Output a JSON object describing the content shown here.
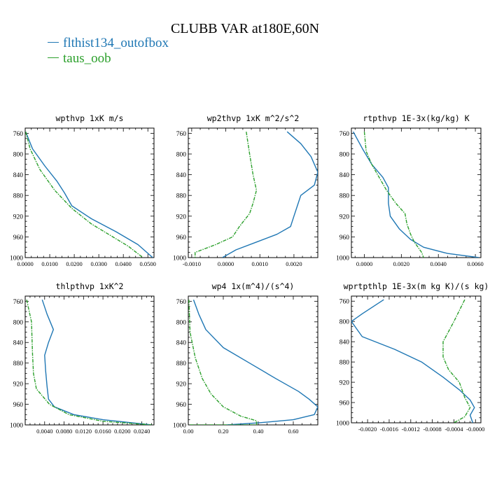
{
  "title": "CLUBB VAR at180E,60N",
  "legend": [
    {
      "label": "flthist134_outofbox",
      "color": "#1f77b4"
    },
    {
      "label": "taus_oob",
      "color": "#2ca02c"
    }
  ],
  "colors": {
    "series1": "#1f77b4",
    "series2": "#2ca02c"
  },
  "chart_data": [
    {
      "type": "line",
      "title": "wpthvp  1xK m/s",
      "y_reversed": true,
      "ylim": [
        1000,
        750
      ],
      "yticks": [
        760,
        800,
        840,
        880,
        920,
        960,
        1000
      ],
      "xlim": [
        0,
        0.0525
      ],
      "xticks": [
        0,
        0.01,
        0.02,
        0.03,
        0.04,
        0.05
      ],
      "xtick_labels": [
        "0.0000",
        "0.0100",
        "0.0200",
        "0.0300",
        "0.0400",
        "0.0500"
      ],
      "series": [
        {
          "name": "flthist134_outofbox",
          "x": [
            0.0002,
            0.003,
            0.008,
            0.013,
            0.016,
            0.019,
            0.027,
            0.037,
            0.046,
            0.052
          ],
          "y": [
            757,
            790,
            823,
            853,
            875,
            900,
            925,
            950,
            975,
            1000
          ]
        },
        {
          "name": "taus_oob",
          "x": [
            0.0002,
            0.002,
            0.006,
            0.012,
            0.019,
            0.027,
            0.035,
            0.042,
            0.048
          ],
          "y": [
            757,
            790,
            830,
            870,
            905,
            935,
            958,
            978,
            1000
          ]
        }
      ]
    },
    {
      "type": "line",
      "title": "wp2thvp  1xK m^2/s^2",
      "y_reversed": true,
      "ylim": [
        1000,
        750
      ],
      "yticks": [
        760,
        800,
        840,
        880,
        920,
        960,
        1000
      ],
      "xlim": [
        -0.0011,
        0.0027
      ],
      "xticks": [
        -0.001,
        0,
        0.001,
        0.002
      ],
      "xtick_labels": [
        "-0.0010",
        "0.0000",
        "0.0010",
        "0.0020"
      ],
      "series": [
        {
          "name": "flthist134_outofbox",
          "x": [
            0.0018,
            0.0022,
            0.0025,
            0.0027,
            0.0026,
            0.0022,
            0.0021,
            0.002,
            0.0019,
            0.0015,
            0.0009,
            0.0003,
            -0.0001
          ],
          "y": [
            757,
            780,
            805,
            835,
            860,
            880,
            900,
            920,
            940,
            955,
            970,
            985,
            1000
          ]
        },
        {
          "name": "taus_oob",
          "x": [
            0.0006,
            0.0007,
            0.0008,
            0.0009,
            0.0008,
            0.0007,
            0.0004,
            0.0002,
            -0.0003,
            -0.0009,
            -0.0009
          ],
          "y": [
            757,
            800,
            840,
            870,
            895,
            915,
            940,
            960,
            975,
            990,
            1000
          ]
        }
      ]
    },
    {
      "type": "line",
      "title": "rtpthvp  1E-3x(kg/kg) K",
      "y_reversed": true,
      "ylim": [
        1000,
        750
      ],
      "yticks": [
        760,
        800,
        840,
        880,
        920,
        960,
        1000
      ],
      "xlim": [
        -0.0007,
        0.0063
      ],
      "xticks": [
        0,
        0.002,
        0.004,
        0.006
      ],
      "xtick_labels": [
        "0.0000",
        "0.0020",
        "0.0040",
        "0.0060"
      ],
      "series": [
        {
          "name": "flthist134_outofbox",
          "x": [
            -0.0006,
            -0.0001,
            0.0004,
            0.001,
            0.0013,
            0.0013,
            0.0014,
            0.0019,
            0.0025,
            0.0032,
            0.0045,
            0.0062
          ],
          "y": [
            757,
            790,
            820,
            845,
            865,
            895,
            920,
            945,
            965,
            980,
            992,
            1000
          ]
        },
        {
          "name": "taus_oob",
          "x": [
            0.0,
            0.0001,
            0.0004,
            0.0008,
            0.0012,
            0.0017,
            0.0022,
            0.0023,
            0.0025,
            0.0027,
            0.0031,
            0.0032
          ],
          "y": [
            757,
            795,
            820,
            845,
            870,
            895,
            915,
            935,
            955,
            970,
            990,
            1000
          ]
        }
      ]
    },
    {
      "type": "line",
      "title": "thlpthvp  1xK^2",
      "y_reversed": true,
      "ylim": [
        1000,
        750
      ],
      "yticks": [
        760,
        800,
        840,
        880,
        920,
        960,
        1000
      ],
      "xlim": [
        0,
        0.0265
      ],
      "xticks": [
        0.004,
        0.008,
        0.012,
        0.016,
        0.02,
        0.024
      ],
      "xtick_labels": [
        "0.0040",
        "0.0080",
        "0.0120",
        "0.0160",
        "0.0200",
        "0.0240"
      ],
      "series": [
        {
          "name": "flthist134_outofbox",
          "x": [
            0.0035,
            0.0045,
            0.0058,
            0.0048,
            0.004,
            0.0042,
            0.0045,
            0.0048,
            0.006,
            0.01,
            0.016,
            0.026
          ],
          "y": [
            757,
            785,
            815,
            840,
            865,
            895,
            925,
            950,
            965,
            980,
            990,
            1000
          ]
        },
        {
          "name": "taus_oob",
          "x": [
            0.0003,
            0.0013,
            0.0015,
            0.0017,
            0.0023,
            0.005,
            0.009,
            0.016,
            0.026
          ],
          "y": [
            757,
            800,
            860,
            900,
            930,
            960,
            980,
            993,
            1000
          ]
        }
      ]
    },
    {
      "type": "line",
      "title": "wp4  1x(m^4)/(s^4)",
      "y_reversed": true,
      "ylim": [
        1000,
        750
      ],
      "yticks": [
        760,
        800,
        840,
        880,
        920,
        960,
        1000
      ],
      "xlim": [
        0,
        0.74
      ],
      "xticks": [
        0,
        0.2,
        0.4,
        0.6
      ],
      "xtick_labels": [
        "0.00",
        "0.20",
        "0.40",
        "0.60"
      ],
      "series": [
        {
          "name": "flthist134_outofbox",
          "x": [
            0.03,
            0.06,
            0.1,
            0.2,
            0.35,
            0.5,
            0.63,
            0.69,
            0.74,
            0.72,
            0.6,
            0.4,
            0.22
          ],
          "y": [
            757,
            785,
            815,
            850,
            880,
            910,
            935,
            950,
            965,
            980,
            990,
            996,
            1000
          ]
        },
        {
          "name": "taus_oob",
          "x": [
            0.003,
            0.01,
            0.04,
            0.08,
            0.13,
            0.2,
            0.3,
            0.39,
            0.39,
            0.2,
            0.003
          ],
          "y": [
            757,
            820,
            870,
            910,
            940,
            965,
            983,
            992,
            1000,
            1000,
            1000
          ]
        }
      ]
    },
    {
      "type": "line",
      "title": "wprtpthlp  1E-3x(m kg K)/(s kg)",
      "y_reversed": true,
      "ylim": [
        1000,
        750
      ],
      "yticks": [
        760,
        800,
        840,
        880,
        920,
        960,
        1000
      ],
      "xlim": [
        -0.0023,
        0.0001
      ],
      "xticks": [
        -0.002,
        -0.0016,
        -0.0012,
        -0.0008,
        -0.0004,
        0
      ],
      "xtick_labels": [
        "-0.0020",
        "-0.0016",
        "-0.0012",
        "-0.0008",
        "-0.0004",
        "-0.0000"
      ],
      "series": [
        {
          "name": "flthist134_outofbox",
          "x": [
            -0.0017,
            -0.0021,
            -0.0023,
            -0.0021,
            -0.0015,
            -0.001,
            -0.0006,
            -0.0003,
            -0.0001,
            -2e-05,
            -0.0001,
            -5e-05
          ],
          "y": [
            757,
            785,
            800,
            830,
            855,
            880,
            910,
            935,
            955,
            970,
            985,
            1000
          ]
        },
        {
          "name": "taus_oob",
          "x": [
            -0.0002,
            -0.0004,
            -0.0006,
            -0.0006,
            -0.0005,
            -0.0003,
            -0.0002,
            -0.0001,
            -0.0002,
            -0.0004
          ],
          "y": [
            757,
            800,
            840,
            870,
            895,
            920,
            950,
            970,
            988,
            1000
          ]
        }
      ]
    }
  ]
}
